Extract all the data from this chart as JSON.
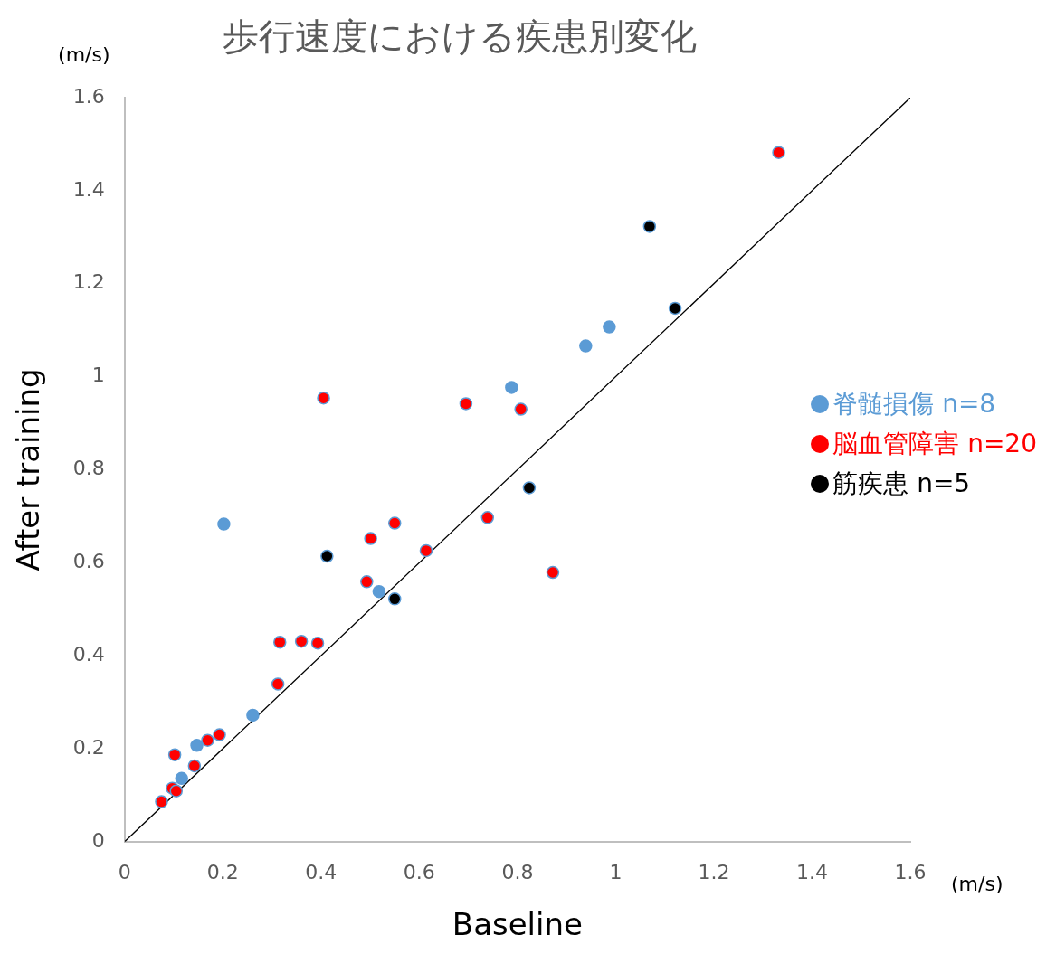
{
  "chart_data": {
    "type": "scatter",
    "title": "歩行速度における疾患別変化",
    "xlabel": "Baseline",
    "ylabel": "After training",
    "annotations": [
      "(m/s)",
      "(m/s)"
    ],
    "xlim": [
      0,
      1.6
    ],
    "ylim": [
      0,
      1.6
    ],
    "xticks": [
      0,
      0.2,
      0.4,
      0.6,
      0.8,
      1,
      1.2,
      1.4,
      1.6
    ],
    "yticks": [
      0,
      0.2,
      0.4,
      0.6,
      0.8,
      1,
      1.2,
      1.4,
      1.6
    ],
    "grid": false,
    "legend": "right",
    "marker": "circle",
    "series": [
      {
        "name": "脊髄損傷 n=8",
        "color": "#5b9bd5",
        "x": [
          0.202,
          0.518,
          0.261,
          0.147,
          0.116,
          0.788,
          0.987,
          0.939
        ],
        "values": [
          0.683,
          0.538,
          0.272,
          0.207,
          0.136,
          0.977,
          1.107,
          1.066
        ]
      },
      {
        "name": "脳血管障害 n=20",
        "color": "#ff0000",
        "x": [
          0.55,
          0.501,
          0.614,
          0.493,
          0.316,
          0.36,
          0.393,
          0.312,
          0.193,
          0.169,
          0.102,
          0.142,
          0.097,
          0.105,
          0.075,
          0.405,
          0.695,
          0.807,
          0.872,
          0.739,
          1.332
        ],
        "values": [
          0.685,
          0.652,
          0.626,
          0.559,
          0.429,
          0.431,
          0.427,
          0.339,
          0.23,
          0.218,
          0.187,
          0.163,
          0.115,
          0.109,
          0.086,
          0.954,
          0.942,
          0.93,
          0.579,
          0.697,
          1.482
        ]
      },
      {
        "name": "筋疾患 n=5",
        "color": "#000000",
        "x": [
          0.412,
          0.55,
          0.824,
          1.069,
          1.121
        ],
        "values": [
          0.614,
          0.522,
          0.761,
          1.323,
          1.147
        ]
      },
      {
        "type": "line",
        "marker": "none",
        "color": "#000000",
        "x": [
          0,
          1.6
        ],
        "values": [
          0,
          1.6
        ]
      }
    ]
  }
}
